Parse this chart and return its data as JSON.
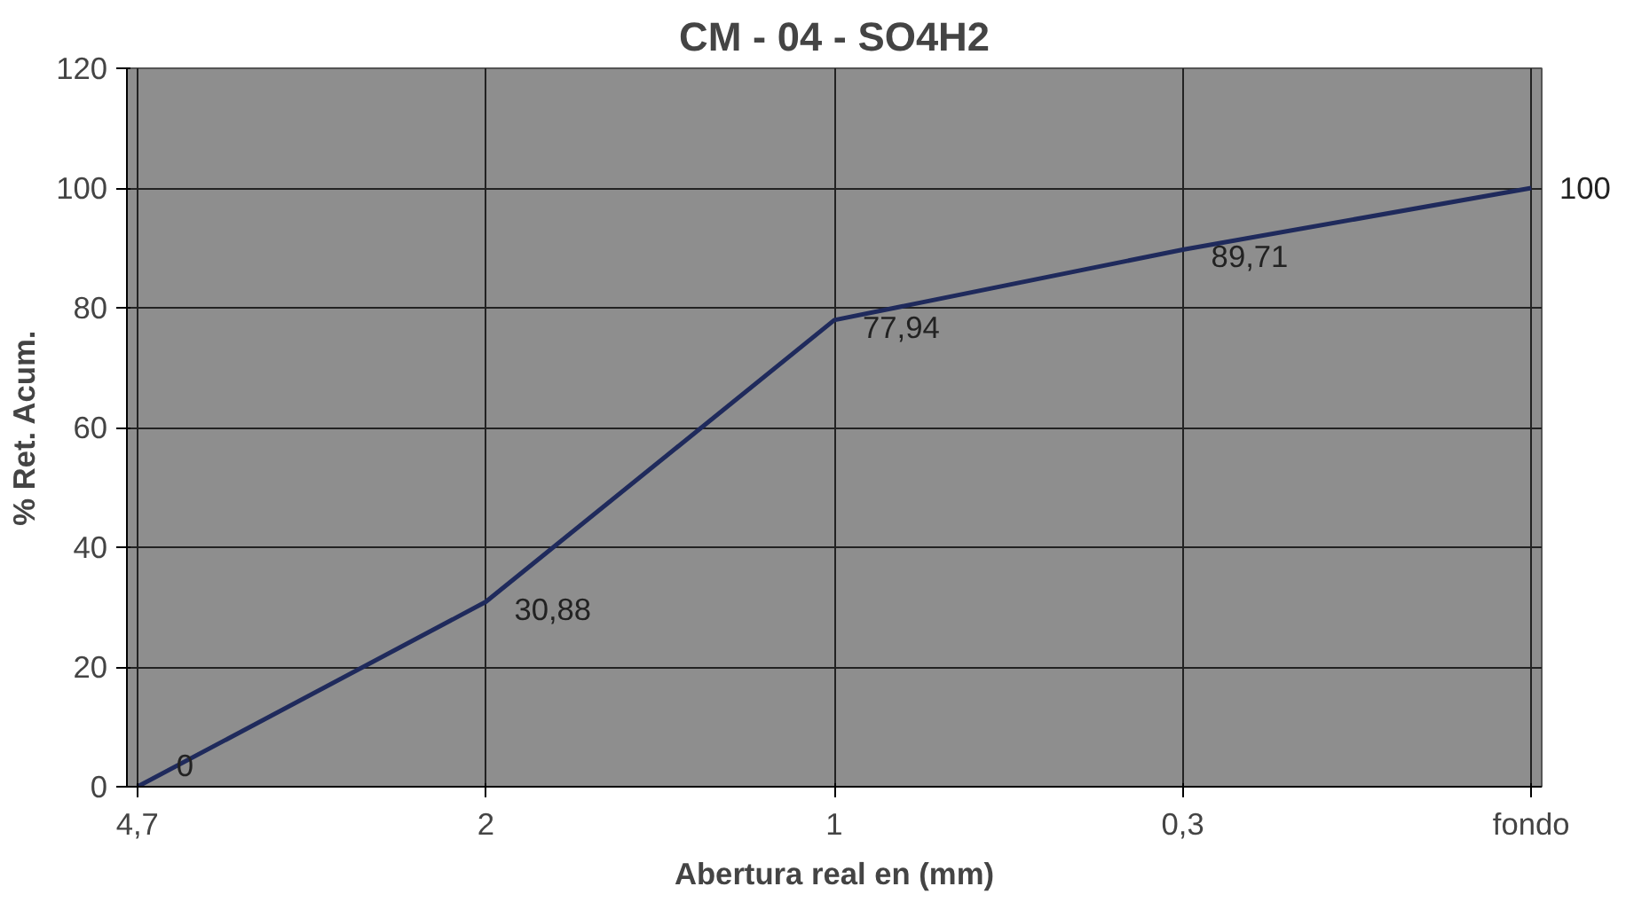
{
  "chart_data": {
    "type": "line",
    "title": "CM - 04 - SO4H2",
    "xlabel": "Abertura real en (mm)",
    "ylabel": "% Ret. Acum.",
    "categories": [
      "4,7",
      "2",
      "1",
      "0,3",
      "fondo"
    ],
    "series": [
      {
        "color": "#1f2a5c",
        "values": [
          0,
          30.88,
          77.94,
          89.71,
          100
        ],
        "value_labels": [
          "0",
          "30,88",
          "77,94",
          "89,71",
          "100"
        ]
      }
    ],
    "ylim": [
      0,
      120
    ],
    "yticks": [
      0,
      20,
      40,
      60,
      80,
      100,
      120
    ],
    "grid": true,
    "marker": "none",
    "line_style": "solid"
  }
}
